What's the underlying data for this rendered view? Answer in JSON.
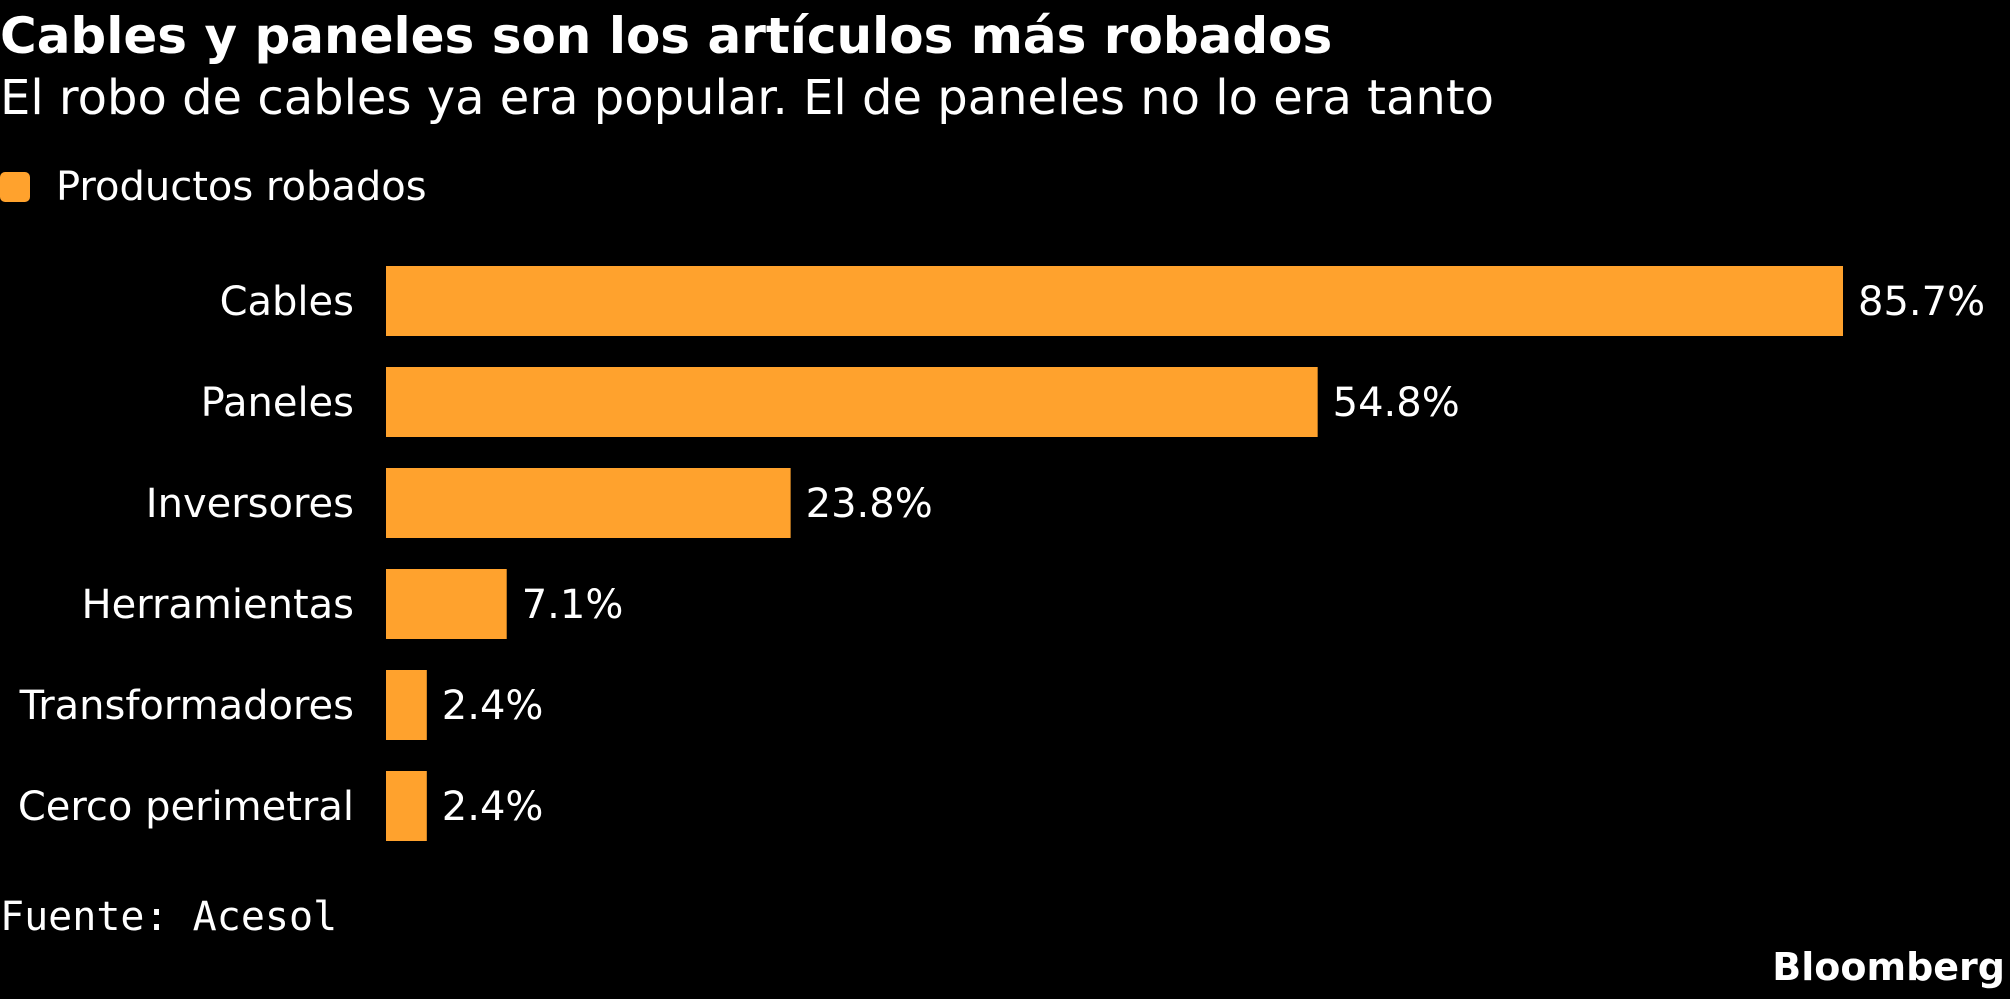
{
  "header": {
    "title": "Cables y paneles son los artículos más robados",
    "subtitle": "El robo de cables ya era popular. El de paneles no lo era tanto"
  },
  "legend": {
    "label": "Productos robados"
  },
  "footer": {
    "source": "Fuente: Acesol",
    "brand": "Bloomberg"
  },
  "colors": {
    "bar": "#FFA22D",
    "background": "#000000",
    "text": "#FFFFFF"
  },
  "chart_data": {
    "type": "bar",
    "orientation": "horizontal",
    "title": "Cables y paneles son los artículos más robados",
    "subtitle": "El robo de cables ya era popular. El de paneles no lo era tanto",
    "categories": [
      "Cables",
      "Paneles",
      "Inversores",
      "Herramientas",
      "Transformadores",
      "Cerco perimetral"
    ],
    "series": [
      {
        "name": "Productos robados",
        "values": [
          85.7,
          54.8,
          23.8,
          7.1,
          2.4,
          2.4
        ],
        "labels": [
          "85.7%",
          "54.8%",
          "23.8%",
          "7.1%",
          "2.4%",
          "2.4%"
        ]
      }
    ],
    "xlim": [
      0,
      85.7
    ],
    "grid": false,
    "legend_position": "top-left"
  }
}
